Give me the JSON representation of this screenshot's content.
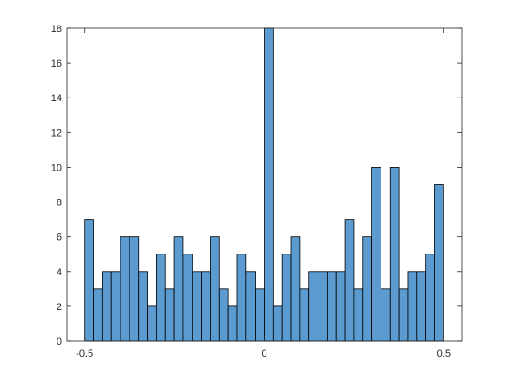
{
  "chart_data": {
    "type": "bar",
    "title": "",
    "xlabel": "",
    "ylabel": "",
    "xlim": [
      -0.55,
      0.55
    ],
    "ylim": [
      0,
      18
    ],
    "grid": false,
    "box": true,
    "bar_color": "#5b9bd0",
    "edge_color": "#000000",
    "bin_edges": [
      -0.5,
      -0.475,
      -0.45,
      -0.425,
      -0.4,
      -0.375,
      -0.35,
      -0.325,
      -0.3,
      -0.275,
      -0.25,
      -0.225,
      -0.2,
      -0.175,
      -0.15,
      -0.125,
      -0.1,
      -0.075,
      -0.05,
      -0.025,
      0,
      0.025,
      0.05,
      0.075,
      0.1,
      0.125,
      0.15,
      0.175,
      0.2,
      0.225,
      0.25,
      0.275,
      0.3,
      0.325,
      0.35,
      0.375,
      0.4,
      0.425,
      0.45,
      0.475,
      0.5
    ],
    "values": [
      7,
      3,
      4,
      4,
      6,
      6,
      4,
      2,
      5,
      3,
      6,
      5,
      4,
      4,
      6,
      3,
      2,
      5,
      4,
      3,
      18,
      2,
      5,
      6,
      3,
      4,
      4,
      4,
      4,
      7,
      3,
      6,
      10,
      3,
      10,
      3,
      4,
      4,
      5,
      9
    ],
    "xticks": [
      -0.5,
      0,
      0.5
    ],
    "xtick_labels": [
      "-0.5",
      "0",
      "0.5"
    ],
    "yticks": [
      0,
      2,
      4,
      6,
      8,
      10,
      12,
      14,
      16,
      18
    ],
    "ytick_labels": [
      "0",
      "2",
      "4",
      "6",
      "8",
      "10",
      "12",
      "14",
      "16",
      "18"
    ]
  }
}
